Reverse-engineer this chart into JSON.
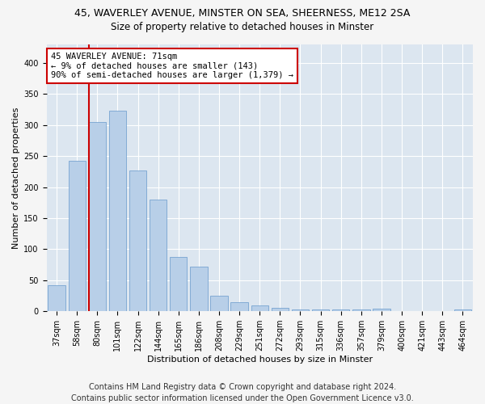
{
  "title_line1": "45, WAVERLEY AVENUE, MINSTER ON SEA, SHEERNESS, ME12 2SA",
  "title_line2": "Size of property relative to detached houses in Minster",
  "xlabel": "Distribution of detached houses by size in Minster",
  "ylabel": "Number of detached properties",
  "bar_color": "#b8cfe8",
  "bar_edge_color": "#6699cc",
  "background_color": "#dce6f0",
  "grid_color": "#ffffff",
  "annotation_text": "45 WAVERLEY AVENUE: 71sqm\n← 9% of detached houses are smaller (143)\n90% of semi-detached houses are larger (1,379) →",
  "annotation_box_color": "#ffffff",
  "annotation_box_edge": "#cc0000",
  "vline_color": "#cc0000",
  "vline_x": 1.575,
  "categories": [
    "37sqm",
    "58sqm",
    "80sqm",
    "101sqm",
    "122sqm",
    "144sqm",
    "165sqm",
    "186sqm",
    "208sqm",
    "229sqm",
    "251sqm",
    "272sqm",
    "293sqm",
    "315sqm",
    "336sqm",
    "357sqm",
    "379sqm",
    "400sqm",
    "421sqm",
    "443sqm",
    "464sqm"
  ],
  "values": [
    42,
    242,
    305,
    323,
    227,
    180,
    88,
    72,
    25,
    15,
    10,
    5,
    3,
    3,
    3,
    3,
    4,
    0,
    0,
    0,
    3
  ],
  "ylim": [
    0,
    430
  ],
  "yticks": [
    0,
    50,
    100,
    150,
    200,
    250,
    300,
    350,
    400
  ],
  "footer": "Contains HM Land Registry data © Crown copyright and database right 2024.\nContains public sector information licensed under the Open Government Licence v3.0.",
  "footer_fontsize": 7,
  "title_fontsize1": 9,
  "title_fontsize2": 8.5,
  "tick_fontsize": 7,
  "ylabel_fontsize": 8,
  "xlabel_fontsize": 8
}
